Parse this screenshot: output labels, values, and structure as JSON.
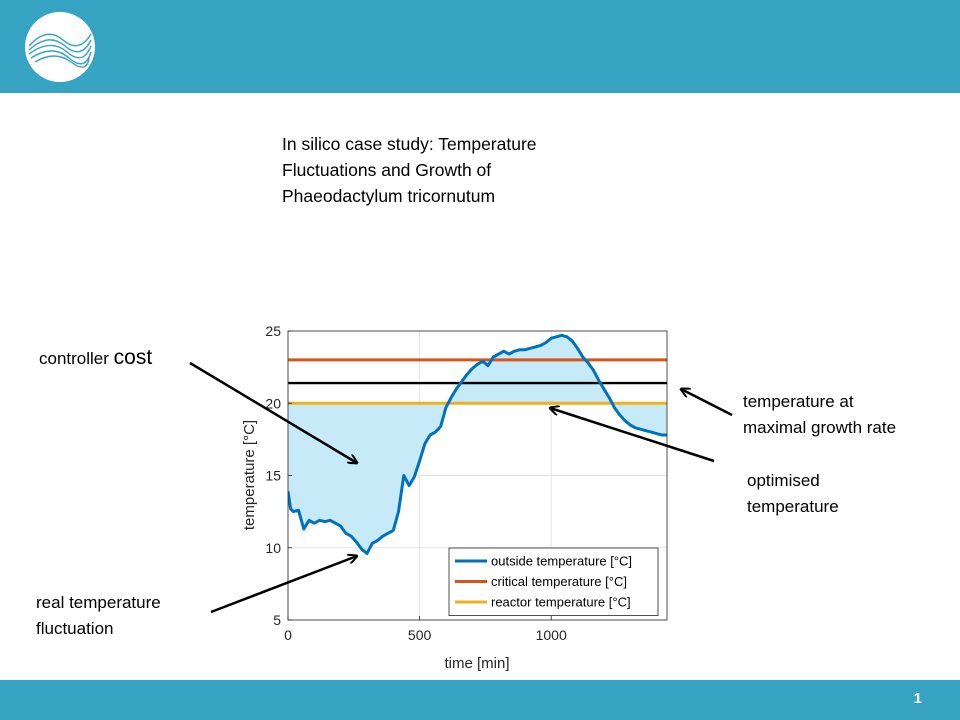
{
  "page_number": "1",
  "title_lines": [
    "In silico case study: Temperature",
    "Fluctuations and Growth of",
    "Phaeodactylum  tricornutum"
  ],
  "annotations": {
    "controller_cost": {
      "prefix": "controller ",
      "emph": "cost"
    },
    "real_fluctuation": [
      "real temperature",
      "fluctuation"
    ],
    "max_growth": [
      "temperature  at",
      "maximal  growth rate"
    ],
    "optimised": [
      "optimised",
      "temperature"
    ]
  },
  "colors": {
    "brand_bar": "#36a3c2",
    "outside": "#0072bd",
    "critical": "#d95319",
    "reactor": "#edb120",
    "max_growth": "#000000",
    "fill": "#c6eaf8"
  },
  "chart_data": {
    "type": "line",
    "xlabel": "time [min]",
    "ylabel": "temperature [°C]",
    "xlim": [
      0,
      1440
    ],
    "ylim": [
      5,
      25
    ],
    "xticks": [
      0,
      500,
      1000
    ],
    "yticks": [
      5,
      10,
      15,
      20,
      25
    ],
    "grid": true,
    "legend_position": "bottom-right",
    "series": [
      {
        "name": "outside temperature [°C]",
        "key": "outside",
        "x": [
          0,
          10,
          20,
          40,
          60,
          80,
          100,
          120,
          140,
          160,
          180,
          200,
          220,
          240,
          260,
          280,
          300,
          320,
          340,
          360,
          380,
          400,
          420,
          440,
          460,
          480,
          500,
          520,
          540,
          560,
          580,
          600,
          620,
          640,
          660,
          680,
          700,
          720,
          740,
          760,
          780,
          800,
          820,
          840,
          860,
          880,
          900,
          920,
          940,
          960,
          980,
          1000,
          1020,
          1040,
          1060,
          1080,
          1100,
          1120,
          1140,
          1160,
          1180,
          1200,
          1220,
          1240,
          1260,
          1280,
          1300,
          1320,
          1340,
          1360,
          1380,
          1400,
          1420,
          1440
        ],
        "y": [
          13.9,
          12.7,
          12.5,
          12.6,
          11.3,
          11.9,
          11.7,
          11.9,
          11.8,
          11.9,
          11.7,
          11.5,
          11.0,
          10.8,
          10.4,
          9.9,
          9.6,
          10.3,
          10.5,
          10.8,
          11.0,
          11.2,
          12.5,
          15.0,
          14.3,
          14.9,
          16.0,
          17.2,
          17.8,
          18.0,
          18.4,
          19.7,
          20.4,
          21.0,
          21.5,
          22.0,
          22.4,
          22.7,
          22.9,
          22.6,
          23.2,
          23.4,
          23.6,
          23.4,
          23.6,
          23.7,
          23.7,
          23.8,
          23.9,
          24.0,
          24.2,
          24.5,
          24.6,
          24.7,
          24.6,
          24.3,
          23.8,
          23.2,
          22.8,
          22.3,
          21.6,
          21.0,
          20.4,
          19.7,
          19.2,
          18.8,
          18.5,
          18.3,
          18.2,
          18.1,
          18.0,
          17.9,
          17.8,
          17.8
        ]
      },
      {
        "name": "critical temperature [°C]",
        "key": "critical",
        "x": [
          0,
          1440
        ],
        "y": [
          23.0,
          23.0
        ]
      },
      {
        "name": "reactor temperature [°C]",
        "key": "reactor",
        "x": [
          0,
          1440
        ],
        "y": [
          20.0,
          20.0
        ]
      },
      {
        "name": "",
        "key": "max_growth",
        "x": [
          0,
          1440
        ],
        "y": [
          21.4,
          21.4
        ]
      }
    ]
  }
}
